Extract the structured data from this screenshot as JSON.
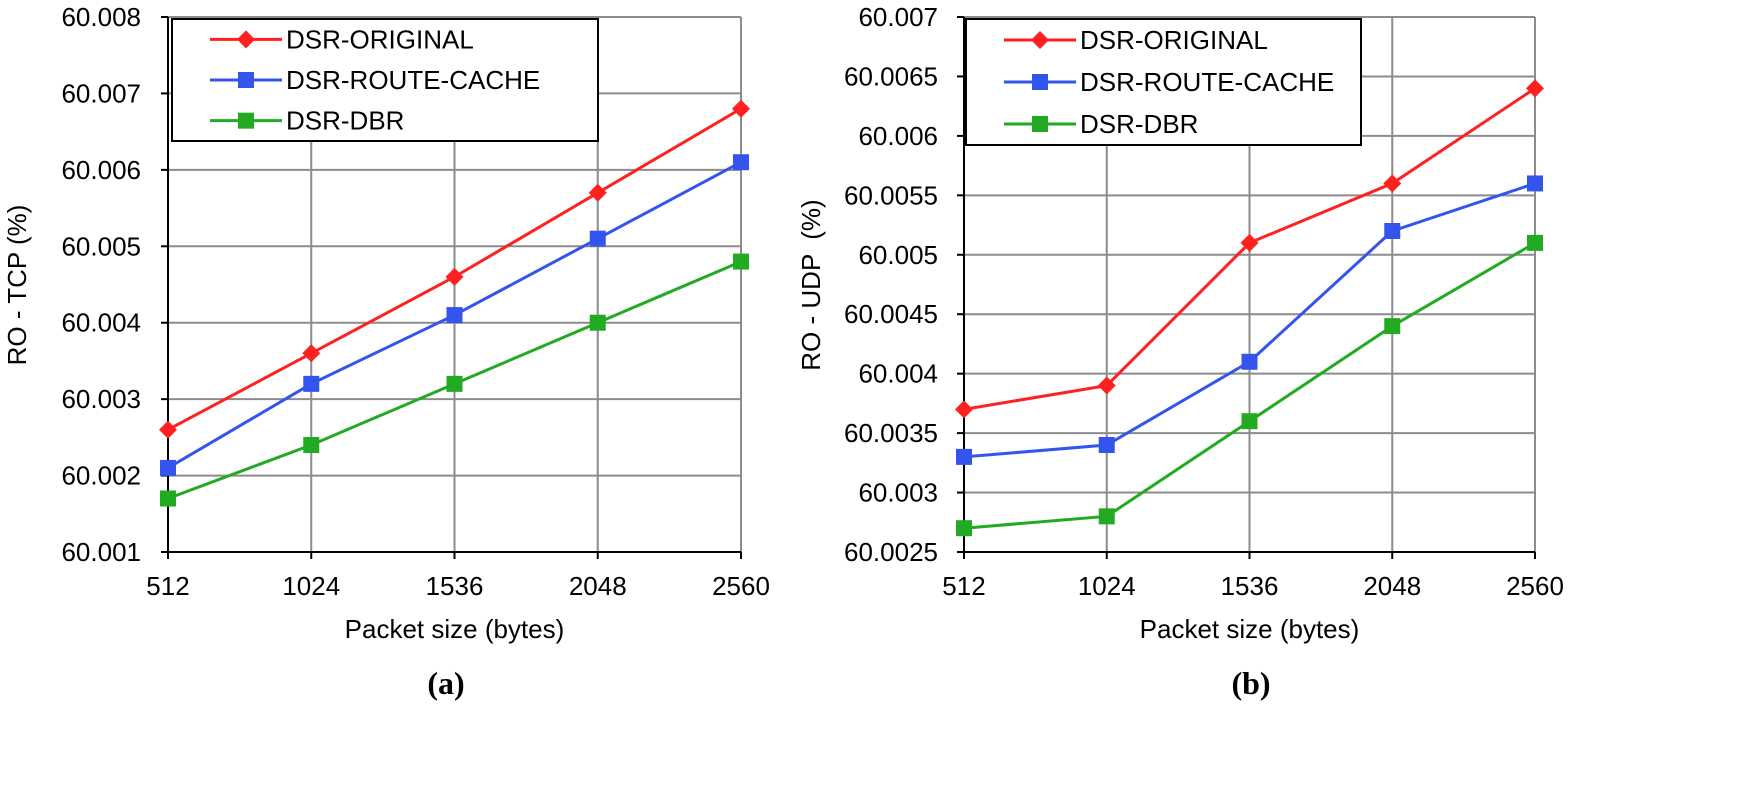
{
  "chart_data": [
    {
      "type": "line",
      "caption": "(a)",
      "xlabel": "Packet size (bytes)",
      "ylabel": "RO - TCP (%)",
      "categories": [
        "512",
        "1024",
        "1536",
        "2048",
        "2560"
      ],
      "yticks": [
        "60.001",
        "60.002",
        "60.003",
        "60.004",
        "60.005",
        "60.006",
        "60.007",
        "60.008"
      ],
      "ylim": [
        60.001,
        60.008
      ],
      "grid": true,
      "legend_position": "top-left",
      "series": [
        {
          "name": "DSR-ORIGINAL",
          "marker": "diamond",
          "color": "#ff2020",
          "values": [
            60.0026,
            60.0036,
            60.0046,
            60.0057,
            60.0068
          ]
        },
        {
          "name": "DSR-ROUTE-CACHE",
          "marker": "square",
          "color": "#3355ee",
          "values": [
            60.0021,
            60.0032,
            60.0041,
            60.0051,
            60.0061
          ]
        },
        {
          "name": "DSR-DBR",
          "marker": "square",
          "color": "#22aa22",
          "values": [
            60.0017,
            60.0024,
            60.0032,
            60.004,
            60.0048
          ]
        }
      ]
    },
    {
      "type": "line",
      "caption": "(b)",
      "xlabel": "Packet size (bytes)",
      "ylabel": "RO - UDP  (%)",
      "categories": [
        "512",
        "1024",
        "1536",
        "2048",
        "2560"
      ],
      "yticks": [
        "60.0025",
        "60.003",
        "60.0035",
        "60.004",
        "60.0045",
        "60.005",
        "60.0055",
        "60.006",
        "60.0065",
        "60.007"
      ],
      "ylim": [
        60.0025,
        60.007
      ],
      "grid": true,
      "legend_position": "top-left",
      "series": [
        {
          "name": "DSR-ORIGINAL",
          "marker": "diamond",
          "color": "#ff2020",
          "values": [
            60.0037,
            60.0039,
            60.0051,
            60.0056,
            60.0064
          ]
        },
        {
          "name": "DSR-ROUTE-CACHE",
          "marker": "square",
          "color": "#3355ee",
          "values": [
            60.0033,
            60.0034,
            60.0041,
            60.0052,
            60.0056
          ]
        },
        {
          "name": "DSR-DBR",
          "marker": "square",
          "color": "#22aa22",
          "values": [
            60.0027,
            60.0028,
            60.0036,
            60.0044,
            60.0051
          ]
        }
      ]
    }
  ]
}
